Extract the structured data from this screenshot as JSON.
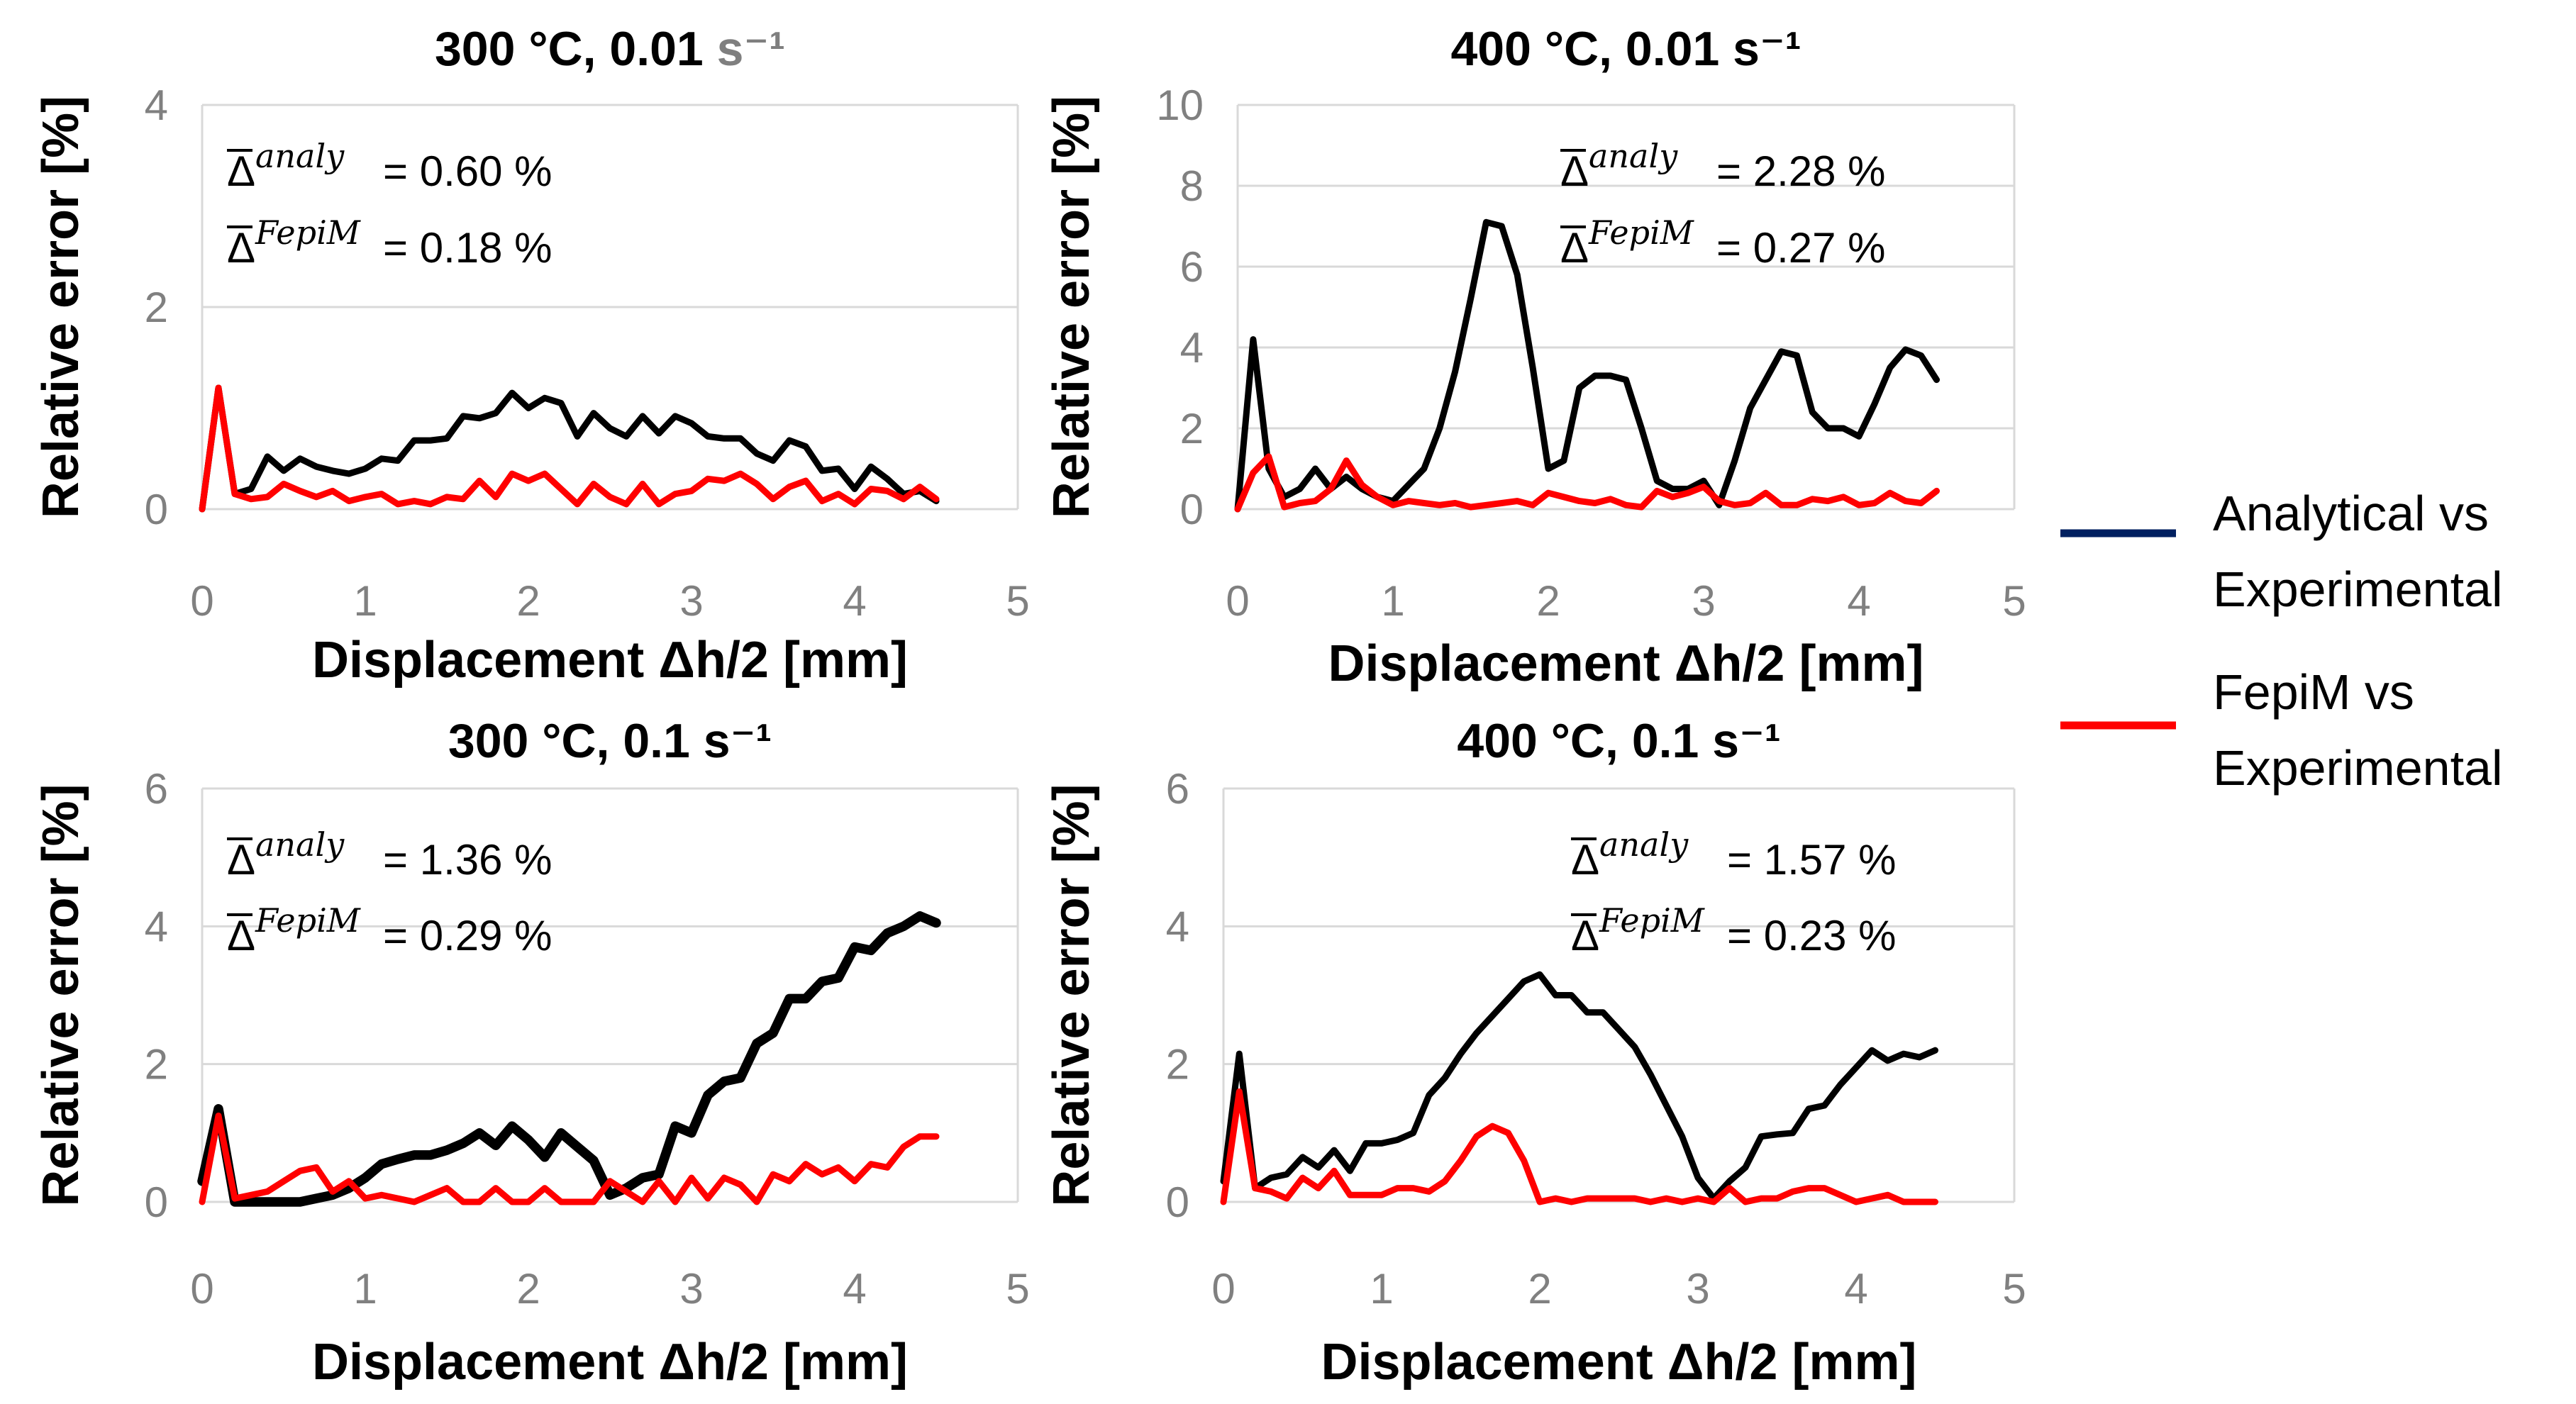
{
  "legend": {
    "items": [
      {
        "label_line1": "Analytical vs",
        "label_line2": "Experimental",
        "color": "#002060"
      },
      {
        "label_line1": "FepiM vs",
        "label_line2": "Experimental",
        "color": "#ff0000"
      }
    ]
  },
  "chart_data": [
    {
      "type": "line",
      "title_main": "300 °C, 0.01 ",
      "title_unit": "s⁻¹",
      "title": "300 °C, 0.01 s⁻¹",
      "xlabel": "Displacement Δh/2  [mm]",
      "ylabel": "Relative error [%]",
      "xlim": [
        0,
        5
      ],
      "ylim": [
        0,
        4
      ],
      "xticks": [
        "0",
        "1",
        "2",
        "3",
        "4",
        "5"
      ],
      "yticks": [
        "0",
        "2",
        "4"
      ],
      "annotation": {
        "analy_sup": "analy",
        "analy_value": "= 0.60 %",
        "fepim_sup": "FepiM",
        "fepim_value": "=  0.18 %"
      },
      "series": [
        {
          "name": "Analytical vs Experimental",
          "color": "#000000",
          "x": [
            0.0,
            0.1,
            0.2,
            0.3,
            0.4,
            0.5,
            0.6,
            0.7,
            0.8,
            0.9,
            1.0,
            1.1,
            1.2,
            1.3,
            1.4,
            1.5,
            1.6,
            1.7,
            1.8,
            1.9,
            2.0,
            2.1,
            2.2,
            2.3,
            2.4,
            2.5,
            2.6,
            2.7,
            2.8,
            2.9,
            3.0,
            3.1,
            3.2,
            3.3,
            3.4,
            3.5,
            3.6,
            3.7,
            3.8,
            3.9,
            4.0,
            4.1,
            4.2,
            4.3,
            4.4,
            4.5
          ],
          "values": [
            0.0,
            1.2,
            0.15,
            0.2,
            0.52,
            0.38,
            0.5,
            0.42,
            0.38,
            0.35,
            0.4,
            0.5,
            0.48,
            0.68,
            0.68,
            0.7,
            0.92,
            0.9,
            0.95,
            1.15,
            1.0,
            1.1,
            1.05,
            0.72,
            0.95,
            0.8,
            0.72,
            0.92,
            0.75,
            0.92,
            0.85,
            0.72,
            0.7,
            0.7,
            0.55,
            0.48,
            0.68,
            0.62,
            0.38,
            0.4,
            0.2,
            0.42,
            0.3,
            0.15,
            0.18,
            0.08
          ]
        },
        {
          "name": "FepiM vs Experimental",
          "color": "#ff0000",
          "x": [
            0.0,
            0.1,
            0.2,
            0.3,
            0.4,
            0.5,
            0.6,
            0.7,
            0.8,
            0.9,
            1.0,
            1.1,
            1.2,
            1.3,
            1.4,
            1.5,
            1.6,
            1.7,
            1.8,
            1.9,
            2.0,
            2.1,
            2.2,
            2.3,
            2.4,
            2.5,
            2.6,
            2.7,
            2.8,
            2.9,
            3.0,
            3.1,
            3.2,
            3.3,
            3.4,
            3.5,
            3.6,
            3.7,
            3.8,
            3.9,
            4.0,
            4.1,
            4.2,
            4.3,
            4.4,
            4.5
          ],
          "values": [
            0.0,
            1.2,
            0.15,
            0.1,
            0.12,
            0.25,
            0.18,
            0.12,
            0.18,
            0.08,
            0.12,
            0.15,
            0.05,
            0.08,
            0.05,
            0.12,
            0.1,
            0.28,
            0.12,
            0.35,
            0.28,
            0.35,
            0.2,
            0.05,
            0.25,
            0.12,
            0.05,
            0.25,
            0.05,
            0.15,
            0.18,
            0.3,
            0.28,
            0.35,
            0.25,
            0.1,
            0.22,
            0.28,
            0.08,
            0.15,
            0.05,
            0.2,
            0.18,
            0.1,
            0.22,
            0.1
          ]
        }
      ]
    },
    {
      "type": "line",
      "title_main": "400 °C, 0.01 s⁻¹",
      "title_unit": "",
      "title": "400 °C, 0.01 s⁻¹",
      "xlabel": "Displacement Δh/2  [mm]",
      "ylabel": "Relative error [%]",
      "xlim": [
        0,
        5
      ],
      "ylim": [
        0,
        10
      ],
      "xticks": [
        "0",
        "1",
        "2",
        "3",
        "4",
        "5"
      ],
      "yticks": [
        "0",
        "2",
        "4",
        "6",
        "8",
        "10"
      ],
      "annotation": {
        "analy_sup": "analy",
        "analy_value": "= 2.28 %",
        "fepim_sup": "FepiM",
        "fepim_value": "=  0.27 %"
      },
      "series": [
        {
          "name": "Analytical vs Experimental",
          "color": "#000000",
          "x": [
            0.0,
            0.1,
            0.2,
            0.3,
            0.4,
            0.5,
            0.6,
            0.7,
            0.8,
            0.9,
            1.0,
            1.1,
            1.2,
            1.3,
            1.4,
            1.5,
            1.6,
            1.7,
            1.8,
            1.9,
            2.0,
            2.1,
            2.2,
            2.3,
            2.4,
            2.5,
            2.6,
            2.7,
            2.8,
            2.9,
            3.0,
            3.1,
            3.2,
            3.3,
            3.4,
            3.5,
            3.6,
            3.7,
            3.8,
            3.9,
            4.0,
            4.1,
            4.2,
            4.3,
            4.4,
            4.5
          ],
          "values": [
            0.0,
            4.2,
            1.0,
            0.3,
            0.5,
            1.0,
            0.5,
            0.8,
            0.5,
            0.3,
            0.2,
            0.6,
            1.0,
            2.0,
            3.4,
            5.2,
            7.1,
            7.0,
            5.8,
            3.5,
            1.0,
            1.2,
            3.0,
            3.3,
            3.3,
            3.2,
            2.0,
            0.7,
            0.5,
            0.5,
            0.7,
            0.1,
            1.2,
            2.5,
            3.2,
            3.9,
            3.8,
            2.4,
            2.0,
            2.0,
            1.8,
            2.6,
            3.5,
            3.95,
            3.8,
            3.2
          ]
        },
        {
          "name": "FepiM vs Experimental",
          "color": "#ff0000",
          "x": [
            0.0,
            0.1,
            0.2,
            0.3,
            0.4,
            0.5,
            0.6,
            0.7,
            0.8,
            0.9,
            1.0,
            1.1,
            1.2,
            1.3,
            1.4,
            1.5,
            1.6,
            1.7,
            1.8,
            1.9,
            2.0,
            2.1,
            2.2,
            2.3,
            2.4,
            2.5,
            2.6,
            2.7,
            2.8,
            2.9,
            3.0,
            3.1,
            3.2,
            3.3,
            3.4,
            3.5,
            3.6,
            3.7,
            3.8,
            3.9,
            4.0,
            4.1,
            4.2,
            4.3,
            4.4,
            4.5
          ],
          "values": [
            0.0,
            0.9,
            1.3,
            0.05,
            0.15,
            0.2,
            0.5,
            1.2,
            0.6,
            0.3,
            0.1,
            0.2,
            0.15,
            0.1,
            0.15,
            0.05,
            0.1,
            0.15,
            0.2,
            0.1,
            0.4,
            0.3,
            0.2,
            0.15,
            0.25,
            0.1,
            0.05,
            0.45,
            0.3,
            0.4,
            0.55,
            0.2,
            0.1,
            0.15,
            0.4,
            0.1,
            0.1,
            0.25,
            0.2,
            0.3,
            0.1,
            0.15,
            0.4,
            0.2,
            0.15,
            0.45
          ]
        }
      ]
    },
    {
      "type": "line",
      "title_main": "300 °C, 0.1 s⁻¹",
      "title_unit": "",
      "title": "300 °C, 0.1 s⁻¹",
      "xlabel": "Displacement Δh/2  [mm]",
      "ylabel": "Relative error [%]",
      "xlim": [
        0,
        5
      ],
      "ylim": [
        0,
        6
      ],
      "xticks": [
        "0",
        "1",
        "2",
        "3",
        "4",
        "5"
      ],
      "yticks": [
        "0",
        "2",
        "4",
        "6"
      ],
      "annotation": {
        "analy_sup": "analy",
        "analy_value": "= 1.36 %",
        "fepim_sup": "FepiM",
        "fepim_value": "=  0.29 %"
      },
      "series": [
        {
          "name": "Analytical vs Experimental",
          "color": "#000000",
          "x": [
            0.0,
            0.1,
            0.2,
            0.3,
            0.4,
            0.5,
            0.6,
            0.7,
            0.8,
            0.9,
            1.0,
            1.1,
            1.2,
            1.3,
            1.4,
            1.5,
            1.6,
            1.7,
            1.8,
            1.9,
            2.0,
            2.1,
            2.2,
            2.3,
            2.4,
            2.5,
            2.6,
            2.7,
            2.8,
            2.9,
            3.0,
            3.1,
            3.2,
            3.3,
            3.4,
            3.5,
            3.6,
            3.7,
            3.8,
            3.9,
            4.0,
            4.1,
            4.2,
            4.3,
            4.4,
            4.5
          ],
          "values": [
            0.3,
            1.35,
            0.0,
            0.0,
            0.0,
            0.0,
            0.0,
            0.05,
            0.1,
            0.2,
            0.35,
            0.55,
            0.62,
            0.68,
            0.68,
            0.75,
            0.85,
            1.0,
            0.82,
            1.1,
            0.9,
            0.65,
            1.0,
            0.8,
            0.6,
            0.1,
            0.2,
            0.35,
            0.4,
            1.1,
            1.0,
            1.55,
            1.75,
            1.8,
            2.3,
            2.45,
            2.95,
            2.95,
            3.2,
            3.25,
            3.7,
            3.65,
            3.9,
            4.0,
            4.15,
            4.05
          ]
        },
        {
          "name": "FepiM vs Experimental",
          "color": "#ff0000",
          "x": [
            0.0,
            0.1,
            0.2,
            0.3,
            0.4,
            0.5,
            0.6,
            0.7,
            0.8,
            0.9,
            1.0,
            1.1,
            1.2,
            1.3,
            1.4,
            1.5,
            1.6,
            1.7,
            1.8,
            1.9,
            2.0,
            2.1,
            2.2,
            2.3,
            2.4,
            2.5,
            2.6,
            2.7,
            2.8,
            2.9,
            3.0,
            3.1,
            3.2,
            3.3,
            3.4,
            3.5,
            3.6,
            3.7,
            3.8,
            3.9,
            4.0,
            4.1,
            4.2,
            4.3,
            4.4,
            4.5
          ],
          "values": [
            0.0,
            1.25,
            0.05,
            0.1,
            0.15,
            0.3,
            0.45,
            0.5,
            0.15,
            0.3,
            0.05,
            0.1,
            0.05,
            0.0,
            0.1,
            0.2,
            0.0,
            0.0,
            0.2,
            0.0,
            0.0,
            0.2,
            0.0,
            0.0,
            0.0,
            0.3,
            0.15,
            0.0,
            0.3,
            0.0,
            0.35,
            0.05,
            0.35,
            0.25,
            0.0,
            0.4,
            0.3,
            0.55,
            0.4,
            0.5,
            0.3,
            0.55,
            0.5,
            0.8,
            0.95,
            0.95
          ]
        }
      ]
    },
    {
      "type": "line",
      "title_main": "400 °C, 0.1 s⁻¹",
      "title_unit": "",
      "title": "400 °C, 0.1 s⁻¹",
      "xlabel": "Displacement Δh/2  [mm]",
      "ylabel": "Relative error [%]",
      "xlim": [
        0,
        5
      ],
      "ylim": [
        0,
        6
      ],
      "xticks": [
        "0",
        "1",
        "2",
        "3",
        "4",
        "5"
      ],
      "yticks": [
        "0",
        "2",
        "4",
        "6"
      ],
      "annotation": {
        "analy_sup": "analy",
        "analy_value": "= 1.57 %",
        "fepim_sup": "FepiM",
        "fepim_value": "=  0.23 %"
      },
      "series": [
        {
          "name": "Analytical vs Experimental",
          "color": "#000000",
          "x": [
            0.0,
            0.1,
            0.2,
            0.3,
            0.4,
            0.5,
            0.6,
            0.7,
            0.8,
            0.9,
            1.0,
            1.1,
            1.2,
            1.3,
            1.4,
            1.5,
            1.6,
            1.7,
            1.8,
            1.9,
            2.0,
            2.1,
            2.2,
            2.3,
            2.4,
            2.5,
            2.6,
            2.7,
            2.8,
            2.9,
            3.0,
            3.1,
            3.2,
            3.3,
            3.4,
            3.5,
            3.6,
            3.7,
            3.8,
            3.9,
            4.0,
            4.1,
            4.2,
            4.3,
            4.4,
            4.5
          ],
          "values": [
            0.3,
            2.15,
            0.2,
            0.35,
            0.4,
            0.65,
            0.5,
            0.75,
            0.45,
            0.85,
            0.85,
            0.9,
            1.0,
            1.55,
            1.8,
            2.15,
            2.45,
            2.7,
            2.95,
            3.2,
            3.3,
            3.0,
            3.0,
            2.75,
            2.75,
            2.5,
            2.25,
            1.85,
            1.4,
            0.95,
            0.35,
            0.05,
            0.3,
            0.5,
            0.95,
            0.98,
            1.0,
            1.35,
            1.4,
            1.7,
            1.95,
            2.2,
            2.05,
            2.15,
            2.1,
            2.2
          ]
        },
        {
          "name": "FepiM vs Experimental",
          "color": "#ff0000",
          "x": [
            0.0,
            0.1,
            0.2,
            0.3,
            0.4,
            0.5,
            0.6,
            0.7,
            0.8,
            0.9,
            1.0,
            1.1,
            1.2,
            1.3,
            1.4,
            1.5,
            1.6,
            1.7,
            1.8,
            1.9,
            2.0,
            2.1,
            2.2,
            2.3,
            2.4,
            2.5,
            2.6,
            2.7,
            2.8,
            2.9,
            3.0,
            3.1,
            3.2,
            3.3,
            3.4,
            3.5,
            3.6,
            3.7,
            3.8,
            3.9,
            4.0,
            4.1,
            4.2,
            4.3,
            4.4,
            4.5
          ],
          "values": [
            0.0,
            1.6,
            0.2,
            0.15,
            0.05,
            0.35,
            0.2,
            0.45,
            0.1,
            0.1,
            0.1,
            0.2,
            0.2,
            0.15,
            0.3,
            0.6,
            0.95,
            1.1,
            1.0,
            0.6,
            0.0,
            0.05,
            0.0,
            0.05,
            0.05,
            0.05,
            0.05,
            0.0,
            0.05,
            0.0,
            0.05,
            0.0,
            0.2,
            0.0,
            0.05,
            0.05,
            0.15,
            0.2,
            0.2,
            0.1,
            0.0,
            0.05,
            0.1,
            0.0,
            0.0,
            0.0
          ]
        }
      ]
    }
  ]
}
